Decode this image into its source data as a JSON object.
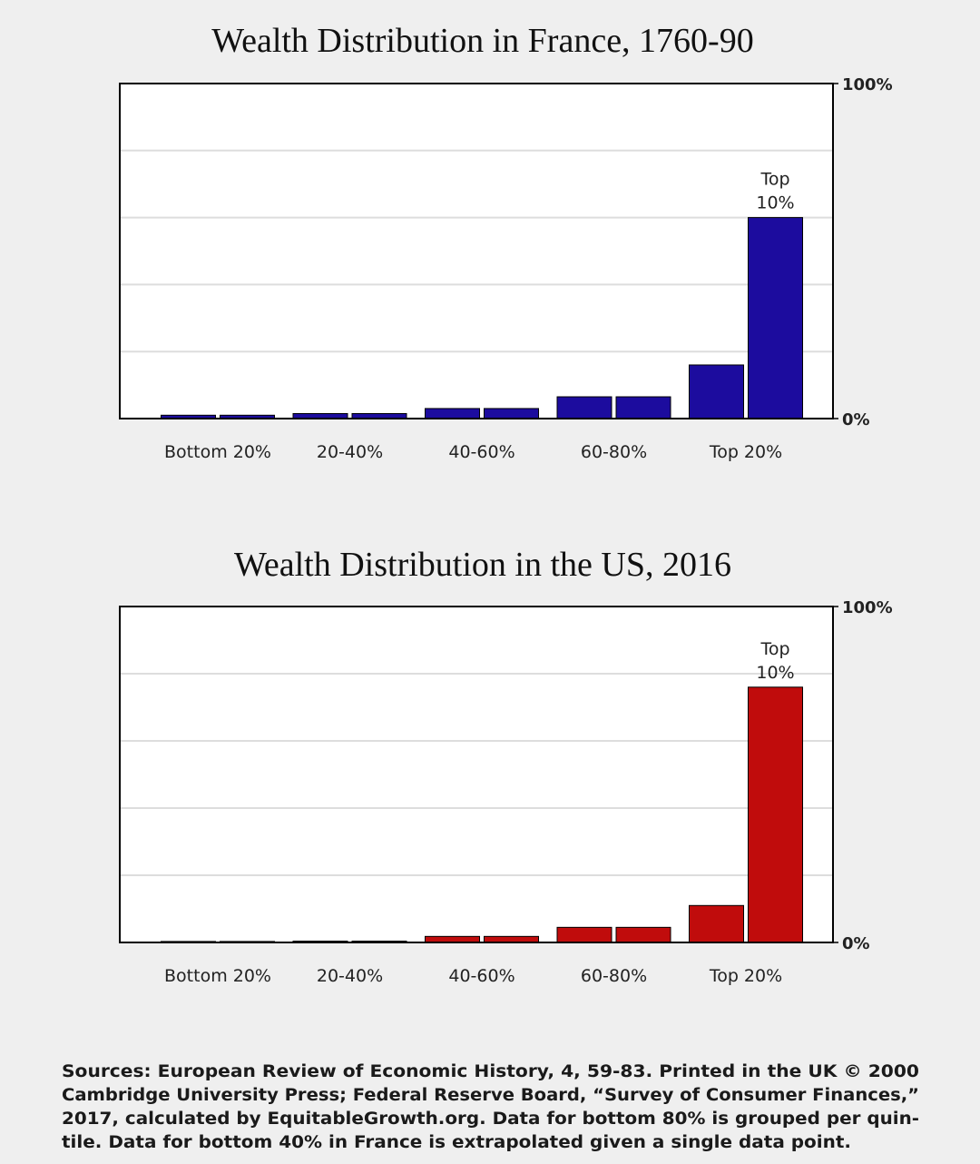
{
  "chart_data": [
    {
      "type": "bar",
      "title": "Wealth Distribution in France, 1760-90",
      "categories": [
        "Bottom 20%",
        "20-40%",
        "40-60%",
        "60-80%",
        "Top 20%"
      ],
      "values": [
        [
          1,
          1
        ],
        [
          1.5,
          1.5
        ],
        [
          3,
          3
        ],
        [
          6.5,
          6.5
        ],
        [
          16,
          60
        ]
      ],
      "color": "#1c0c9e",
      "annotation_lines": [
        "Top",
        "10%"
      ],
      "ylim": [
        0,
        100
      ],
      "yticks": [
        {
          "value": 0,
          "label": "0%"
        },
        {
          "value": 100,
          "label": "100%"
        }
      ],
      "minor_yticks": [
        20,
        40,
        60,
        80
      ],
      "grid": true
    },
    {
      "type": "bar",
      "title": "Wealth Distribution in the US, 2016",
      "categories": [
        "Bottom 20%",
        "20-40%",
        "40-60%",
        "60-80%",
        "Top 20%"
      ],
      "values": [
        [
          0.3,
          0.3
        ],
        [
          0.4,
          0.4
        ],
        [
          1.8,
          1.8
        ],
        [
          4.5,
          4.5
        ],
        [
          11,
          76
        ]
      ],
      "color": "#c00c0c",
      "annotation_lines": [
        "Top",
        "10%"
      ],
      "ylim": [
        0,
        100
      ],
      "yticks": [
        {
          "value": 0,
          "label": "0%"
        },
        {
          "value": 100,
          "label": "100%"
        }
      ],
      "minor_yticks": [
        20,
        40,
        60,
        80
      ],
      "grid": true
    }
  ],
  "footer": [
    "Sources: European Review of Economic History, 4, 59-83. Printed in the UK © 2000",
    "Cambridge University Press; Federal Reserve Board, “Survey of Consumer Finances,”",
    "2017, calculated by EquitableGrowth.org. Data for bottom 80% is grouped per quin-",
    "tile. Data for bottom 40% in France is extrapolated given a single data point."
  ]
}
